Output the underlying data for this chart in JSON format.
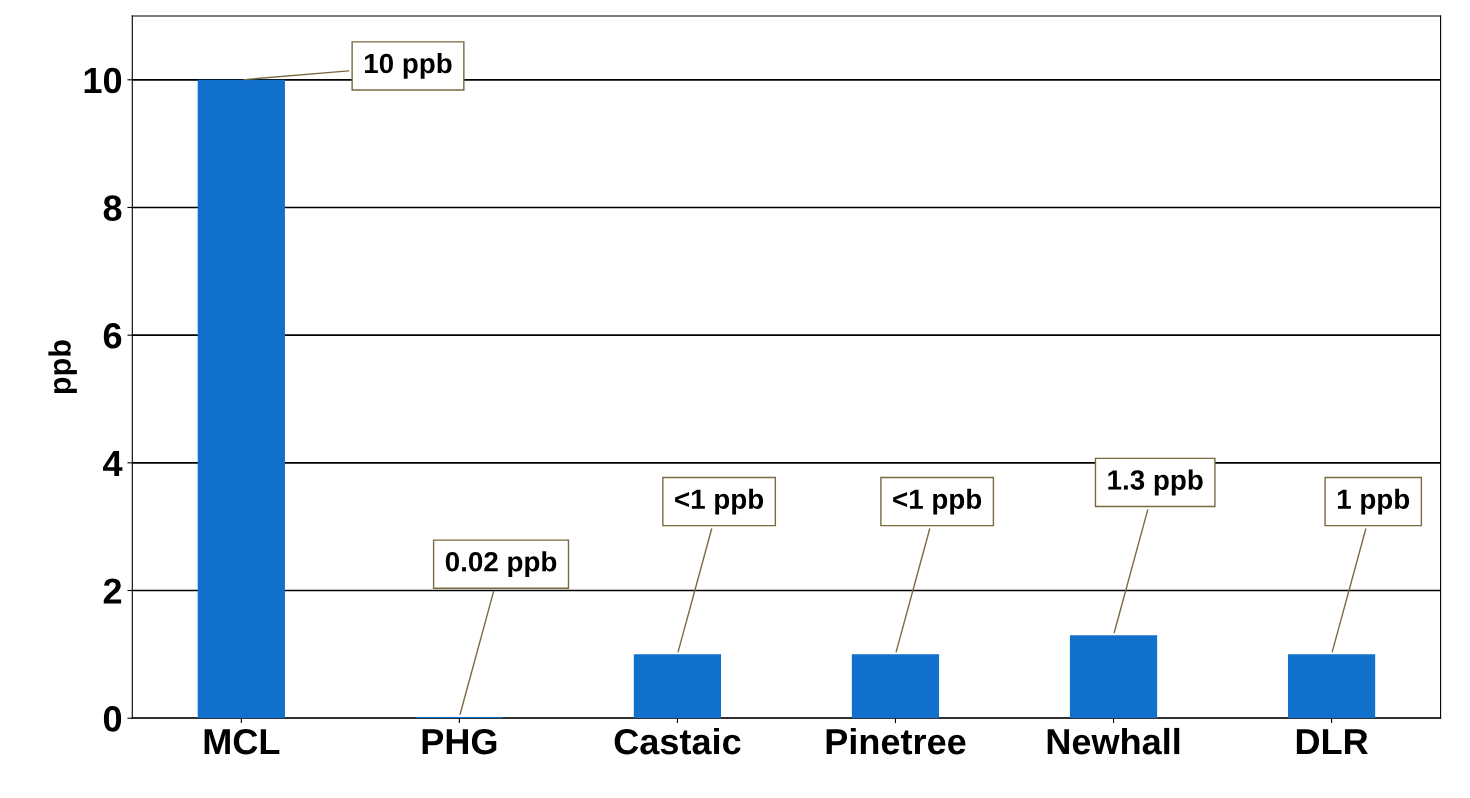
{
  "chart_data": {
    "type": "bar",
    "ylabel": "ppb",
    "categories": [
      "MCL",
      "PHG",
      "Castaic",
      "Pinetree",
      "Newhall",
      "DLR"
    ],
    "values": [
      10,
      0.02,
      1,
      1,
      1.3,
      1
    ],
    "value_labels": [
      "10 ppb",
      "0.02 ppb",
      "<1 ppb",
      "<1 ppb",
      "1.3 ppb",
      "1 ppb"
    ],
    "color": "#1170cc",
    "ylim": [
      0,
      11
    ],
    "yticks": [
      0,
      2,
      4,
      6,
      8,
      10
    ],
    "grid": "y"
  }
}
